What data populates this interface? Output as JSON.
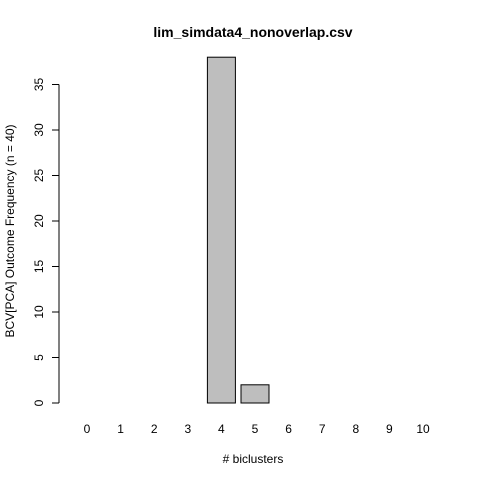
{
  "chart_data": {
    "type": "bar",
    "title": "lim_simdata4_nonoverlap.csv",
    "xlabel": "# biclusters",
    "ylabel": "BCV[PCA] Outcome Frequency (n = 40)",
    "categories": [
      "0",
      "1",
      "2",
      "3",
      "4",
      "5",
      "6",
      "7",
      "8",
      "9",
      "10"
    ],
    "values": [
      0,
      0,
      0,
      0,
      38,
      2,
      0,
      0,
      0,
      0,
      0
    ],
    "yticks": [
      0,
      5,
      10,
      15,
      20,
      25,
      30,
      35
    ],
    "ylim": [
      0,
      38
    ],
    "grid": false,
    "bar_color": "#bebebe",
    "border_color": "#000000"
  }
}
